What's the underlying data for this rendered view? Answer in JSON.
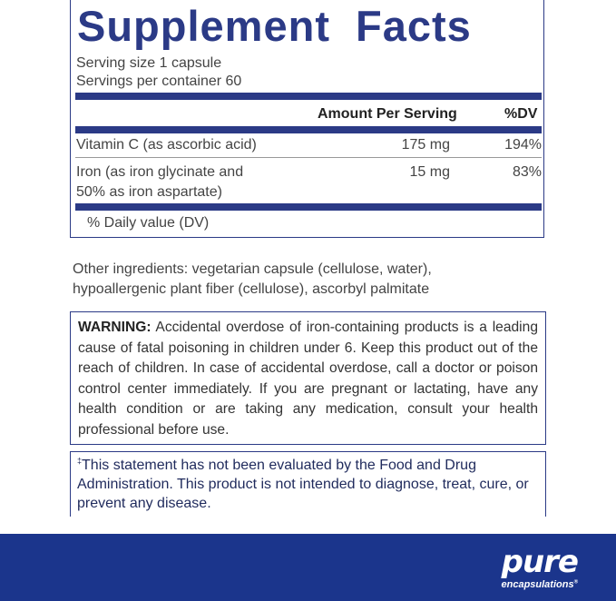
{
  "facts": {
    "title": "Supplement Facts",
    "serving_size": "Serving size  1 capsule",
    "servings_per_container": "Servings per container  60",
    "columns": {
      "amount": "Amount Per Serving",
      "dv": "%DV"
    },
    "rows": [
      {
        "name": "Vitamin C (as ascorbic acid)",
        "amount": "175 mg",
        "dv": "194%"
      },
      {
        "name_line1": "Iron (as iron glycinate and",
        "name_line2": "50% as iron aspartate)",
        "amount": "15 mg",
        "dv": "83%"
      }
    ],
    "footnote": "% Daily value (DV)"
  },
  "other_ingredients": {
    "line1": "Other ingredients: vegetarian capsule (cellulose, water),",
    "line2": "hypoallergenic plant fiber (cellulose), ascorbyl palmitate"
  },
  "warning": {
    "label": "WARNING:",
    "text": " Accidental overdose of iron-containing products is a leading cause of fatal poisoning in children under 6. Keep this product out of the reach of children. In case of accidental overdose, call a doctor or poison control center immediately. If you are pregnant or lactating, have any health condition or are taking any medication, consult your health professional before use."
  },
  "disclaimer": {
    "mark": "‡",
    "text": "This statement has not been evaluated by the Food and Drug Administration. This product is not intended to diagnose, treat, cure, or prevent any disease."
  },
  "brand": {
    "name": "pure",
    "sub": "encapsulations",
    "reg": "®"
  },
  "colors": {
    "navy": "#2b3a86",
    "footer": "#1b358c"
  }
}
